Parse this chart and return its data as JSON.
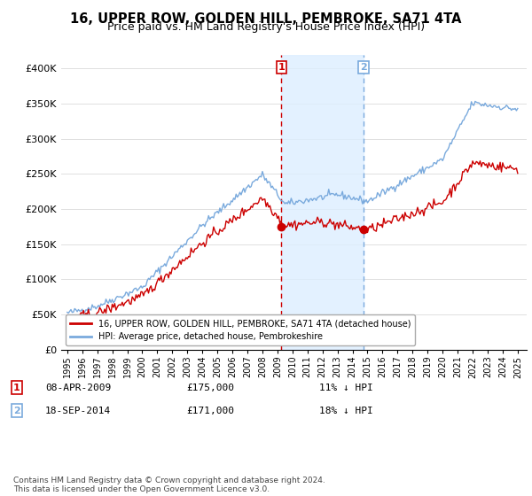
{
  "title": "16, UPPER ROW, GOLDEN HILL, PEMBROKE, SA71 4TA",
  "subtitle": "Price paid vs. HM Land Registry's House Price Index (HPI)",
  "title_fontsize": 10.5,
  "subtitle_fontsize": 9,
  "ytick_vals": [
    0,
    50000,
    100000,
    150000,
    200000,
    250000,
    300000,
    350000,
    400000
  ],
  "ylim": [
    0,
    420000
  ],
  "sale1": {
    "date": "08-APR-2009",
    "price": 175000,
    "label": "1",
    "hpi_diff": "11% ↓ HPI"
  },
  "sale2": {
    "date": "18-SEP-2014",
    "price": 171000,
    "label": "2",
    "hpi_diff": "18% ↓ HPI"
  },
  "legend_property": "16, UPPER ROW, GOLDEN HILL, PEMBROKE, SA71 4TA (detached house)",
  "legend_hpi": "HPI: Average price, detached house, Pembrokeshire",
  "property_color": "#cc0000",
  "hpi_color": "#7aaadd",
  "shade_color": "#ddeeff",
  "footnote": "Contains HM Land Registry data © Crown copyright and database right 2024.\nThis data is licensed under the Open Government Licence v3.0.",
  "sale1_x": 2009.27,
  "sale2_x": 2014.72,
  "vline1_color": "#cc0000",
  "vline2_color": "#7aaadd"
}
